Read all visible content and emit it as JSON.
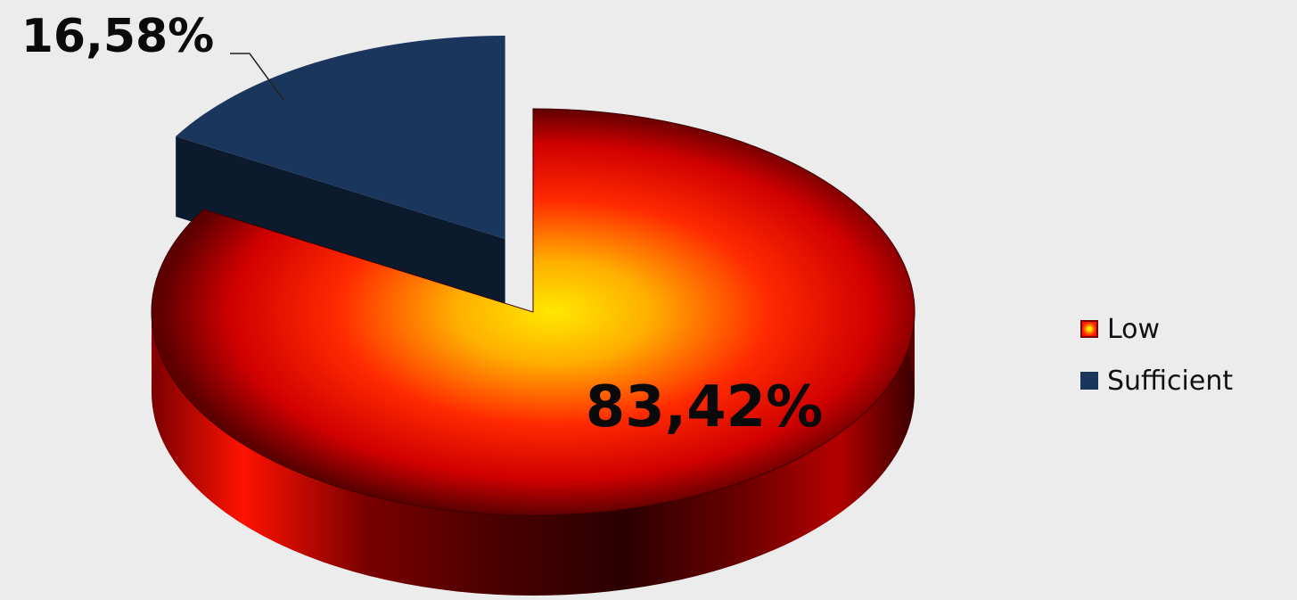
{
  "chart_data": {
    "type": "pie",
    "style": "3d-exploded",
    "categories": [
      "Low",
      "Sufficient"
    ],
    "values": [
      83.42,
      16.58
    ],
    "data_labels": [
      "83,42%",
      "16,58%"
    ],
    "title": "",
    "legend": {
      "position": "right",
      "entries": [
        "Low",
        "Sufficient"
      ]
    },
    "colors": {
      "Low": {
        "center": "#ffe600",
        "mid": "#ff7a00",
        "edge": "#ff0a00",
        "shadow": "#5a0000"
      },
      "Sufficient": {
        "top": "#1b365d",
        "side": "#0c1a2e"
      }
    }
  }
}
